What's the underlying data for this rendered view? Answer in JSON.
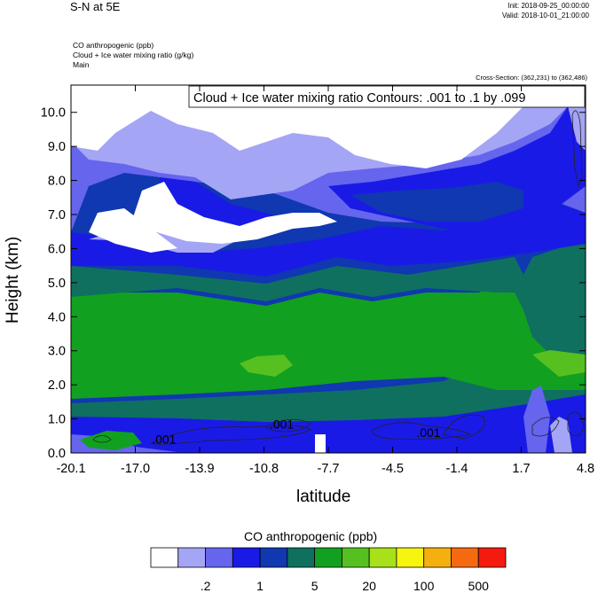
{
  "header": {
    "title": "S-N at 5E",
    "init": "Init: 2018-09-25_00:00:00",
    "valid": "Valid: 2018-10-01_21:00:00",
    "fields": [
      "CO anthropogenic   (ppb)",
      "Cloud + Ice water mixing ratio   (g/kg)",
      "Main"
    ],
    "cross_section": "Cross-Section: (362,231) to (362,486)"
  },
  "chart_data": {
    "type": "heatmap",
    "title": "Cloud + Ice water mixing ratio Contours: .001 to .1 by .099",
    "xlabel": "latitude",
    "ylabel": "Height (km)",
    "xlim": [
      -20.1,
      4.8
    ],
    "ylim": [
      0.0,
      10.8
    ],
    "x_ticks": [
      "-20.1",
      "-17.0",
      "-13.9",
      "-10.8",
      "-7.7",
      "-4.5",
      "-1.4",
      "1.7",
      "4.8"
    ],
    "y_ticks": [
      "0.0",
      "1.0",
      "2.0",
      "3.0",
      "4.0",
      "5.0",
      "6.0",
      "7.0",
      "8.0",
      "9.0",
      "10.0"
    ],
    "contour_labels": [
      {
        "text": ".001",
        "x": -15.6,
        "y": 0.4
      },
      {
        "text": ".001",
        "x": -9.9,
        "y": 0.85
      },
      {
        "text": ".001",
        "x": -2.8,
        "y": 0.6
      }
    ],
    "colorbar": {
      "title": "CO anthropogenic  (ppb)",
      "colors": [
        "#ffffff",
        "#a5a5f5",
        "#6565ee",
        "#1a1ae6",
        "#1038b0",
        "#0f7060",
        "#12a020",
        "#55c020",
        "#a8e01a",
        "#f5f510",
        "#f5b010",
        "#f56a10",
        "#f51a10"
      ],
      "labels": [
        ".2",
        "1",
        "5",
        "20",
        "100",
        "500"
      ]
    }
  }
}
